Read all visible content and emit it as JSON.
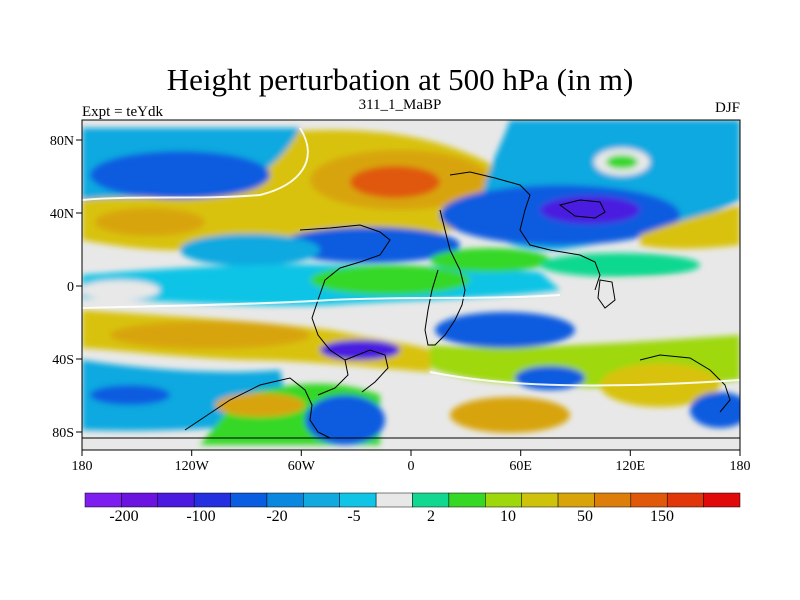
{
  "header": {
    "title": "Height perturbation at 500 hPa (in m)",
    "left_label": "Expt = teYdk",
    "center_label": "311_1_MaBP",
    "right_label": "DJF"
  },
  "axes": {
    "lon_ticks": [
      "180",
      "120W",
      "60W",
      "0",
      "60E",
      "120E",
      "180"
    ],
    "lat_ticks": [
      "80N",
      "40N",
      "0",
      "40S",
      "80S"
    ]
  },
  "colorbar": {
    "colors": [
      "#7e1df0",
      "#6b14e0",
      "#4a1ae0",
      "#2430e0",
      "#0a5ce0",
      "#0a88e0",
      "#11a9e0",
      "#10c4e6",
      "#e8e8e8",
      "#10d890",
      "#35d825",
      "#9ed80a",
      "#cec20a",
      "#d8a40a",
      "#de7e0a",
      "#e0580a",
      "#e0360a",
      "#e00a0a"
    ],
    "labels": [
      "-200",
      "-100",
      "-20",
      "-5",
      "2",
      "10",
      "50",
      "150"
    ]
  },
  "map": {
    "land_label": "continent outlines"
  }
}
